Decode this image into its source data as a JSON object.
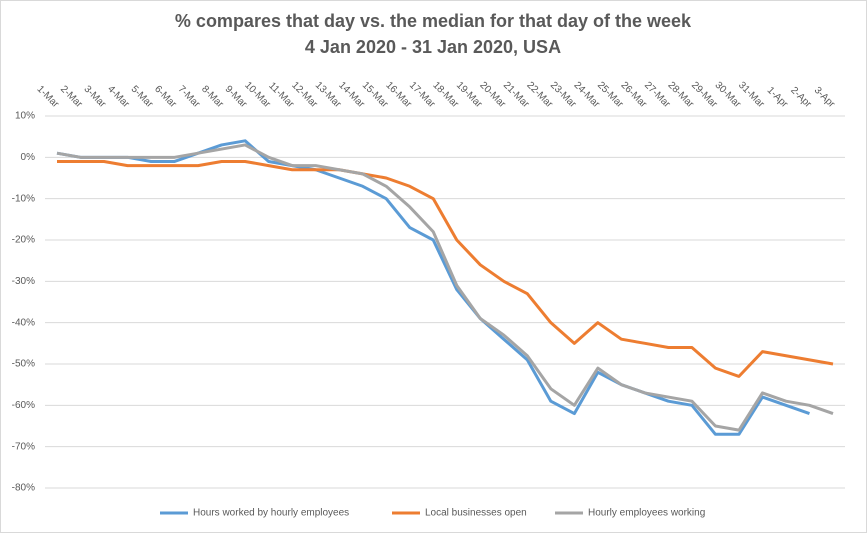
{
  "chart_data": {
    "type": "line",
    "title": "% compares that day vs. the median for that day of the week",
    "subtitle": "4 Jan 2020 - 31 Jan 2020, USA",
    "categories": [
      "1-Mar",
      "2-Mar",
      "3-Mar",
      "4-Mar",
      "5-Mar",
      "6-Mar",
      "7-Mar",
      "8-Mar",
      "9-Mar",
      "10-Mar",
      "11-Mar",
      "12-Mar",
      "13-Mar",
      "14-Mar",
      "15-Mar",
      "16-Mar",
      "17-Mar",
      "18-Mar",
      "19-Mar",
      "20-Mar",
      "21-Mar",
      "22-Mar",
      "23-Mar",
      "24-Mar",
      "25-Mar",
      "26-Mar",
      "27-Mar",
      "28-Mar",
      "29-Mar",
      "30-Mar",
      "31-Mar",
      "1-Apr",
      "2-Apr",
      "3-Apr"
    ],
    "series": [
      {
        "name": "Hours worked by hourly employees",
        "color": "#5b9bd5",
        "values": [
          1,
          0,
          0,
          0,
          -1,
          -1,
          1,
          3,
          4,
          -1,
          -2,
          -3,
          -5,
          -7,
          -10,
          -17,
          -20,
          -32,
          -39,
          -44,
          -49,
          -59,
          -62,
          -52,
          -55,
          -57,
          -59,
          -60,
          -67,
          -67,
          -58,
          -60,
          -62,
          null
        ]
      },
      {
        "name": "Local businesses open",
        "color": "#ed7d31",
        "values": [
          -1,
          -1,
          -1,
          -2,
          -2,
          -2,
          -2,
          -1,
          -1,
          -2,
          -3,
          -3,
          -3,
          -4,
          -5,
          -7,
          -10,
          -20,
          -26,
          -30,
          -33,
          -40,
          -45,
          -40,
          -44,
          -45,
          -46,
          -46,
          -51,
          -53,
          -47,
          -48,
          -49,
          -50
        ]
      },
      {
        "name": "Hourly employees working",
        "color": "#a5a5a5",
        "values": [
          1,
          0,
          0,
          0,
          0,
          0,
          1,
          2,
          3,
          0,
          -2,
          -2,
          -3,
          -4,
          -7,
          -12,
          -18,
          -31,
          -39,
          -43,
          -48,
          -56,
          -60,
          -51,
          -55,
          -57,
          -58,
          -59,
          -65,
          -66,
          -57,
          -59,
          -60,
          -62
        ]
      }
    ],
    "ylim": [
      -80,
      10
    ],
    "yticks": [
      {
        "value": 10,
        "label": "10%"
      },
      {
        "value": 0,
        "label": "0%"
      },
      {
        "value": -10,
        "label": "-10%"
      },
      {
        "value": -20,
        "label": "-20%"
      },
      {
        "value": -30,
        "label": "-30%"
      },
      {
        "value": -40,
        "label": "-40%"
      },
      {
        "value": -50,
        "label": "-50%"
      },
      {
        "value": -60,
        "label": "-60%"
      },
      {
        "value": -70,
        "label": "-70%"
      },
      {
        "value": -80,
        "label": "-80%"
      }
    ],
    "grid": true,
    "legend": "bottom"
  }
}
